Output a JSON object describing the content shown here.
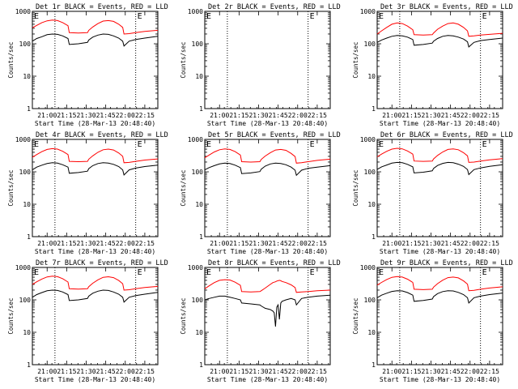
{
  "colors": {
    "events": "#000000",
    "lld": "#ff0000",
    "axis": "#000000",
    "background": "#ffffff"
  },
  "shared": {
    "xlabel": "Start Time (28-Mar-13 20:48:40)",
    "ylabel": "Counts/sec",
    "x_tick_labels": [
      "21:00",
      "21:15",
      "21:30",
      "21:45",
      "22:00",
      "22:15"
    ],
    "y_tick_labels": [
      "1",
      "10",
      "100",
      "1000"
    ],
    "corner_marker": "E",
    "yscale": "log",
    "ylim": [
      1,
      1000
    ],
    "xlim_time": [
      "20:48:40",
      "22:25:00"
    ],
    "dotted_lines_time": [
      "21:06",
      "22:08"
    ]
  },
  "chart_data": [
    {
      "type": "line",
      "title": "Det 1r BLACK = Events, RED = LLD",
      "x": [
        "20:48:40",
        "20:52",
        "20:56",
        "21:00",
        "21:04",
        "21:08",
        "21:12",
        "21:16",
        "21:17",
        "21:24",
        "21:31",
        "21:32",
        "21:35",
        "21:39",
        "21:43",
        "21:47",
        "21:51",
        "21:55",
        "21:58",
        "21:59",
        "22:03",
        "22:08",
        "22:15",
        "22:25"
      ],
      "series": [
        {
          "values": [
            310,
            370,
            450,
            510,
            540,
            520,
            450,
            360,
            220,
            215,
            220,
            260,
            330,
            420,
            500,
            520,
            490,
            400,
            320,
            200,
            205,
            220,
            240,
            260
          ]
        },
        {
          "values": [
            120,
            145,
            165,
            190,
            200,
            195,
            175,
            145,
            95,
            100,
            110,
            130,
            160,
            185,
            200,
            195,
            175,
            150,
            120,
            85,
            120,
            135,
            150,
            170
          ]
        }
      ]
    },
    {
      "type": "line",
      "title": "Det 2r BLACK = Events, RED = LLD",
      "x": [],
      "series": []
    },
    {
      "type": "line",
      "title": "Det 3r BLACK = Events, RED = LLD",
      "x": [
        "20:48:40",
        "20:52",
        "20:56",
        "21:00",
        "21:04",
        "21:08",
        "21:12",
        "21:16",
        "21:17",
        "21:24",
        "21:31",
        "21:32",
        "21:35",
        "21:39",
        "21:43",
        "21:47",
        "21:51",
        "21:55",
        "21:58",
        "21:59",
        "22:03",
        "22:08",
        "22:15",
        "22:25"
      ],
      "series": [
        {
          "values": [
            200,
            250,
            320,
            400,
            440,
            420,
            350,
            270,
            190,
            185,
            190,
            215,
            280,
            350,
            420,
            440,
            400,
            320,
            250,
            170,
            175,
            185,
            195,
            210
          ]
        },
        {
          "values": [
            110,
            130,
            150,
            170,
            180,
            175,
            160,
            135,
            90,
            95,
            105,
            120,
            145,
            170,
            180,
            175,
            160,
            140,
            115,
            80,
            110,
            125,
            135,
            150
          ]
        }
      ]
    },
    {
      "type": "line",
      "title": "Det 4r BLACK = Events, RED = LLD",
      "x": [
        "20:48:40",
        "20:52",
        "20:56",
        "21:00",
        "21:04",
        "21:08",
        "21:12",
        "21:16",
        "21:17",
        "21:24",
        "21:31",
        "21:32",
        "21:35",
        "21:39",
        "21:43",
        "21:47",
        "21:51",
        "21:55",
        "21:58",
        "21:59",
        "22:03",
        "22:08",
        "22:15",
        "22:25"
      ],
      "series": [
        {
          "values": [
            280,
            340,
            420,
            490,
            520,
            500,
            430,
            340,
            210,
            205,
            210,
            245,
            310,
            400,
            480,
            500,
            470,
            380,
            300,
            190,
            195,
            210,
            230,
            250
          ]
        },
        {
          "values": [
            115,
            140,
            160,
            180,
            190,
            185,
            165,
            140,
            90,
            95,
            105,
            125,
            155,
            180,
            190,
            185,
            170,
            145,
            115,
            80,
            115,
            130,
            145,
            160
          ]
        }
      ]
    },
    {
      "type": "line",
      "title": "Det 5r BLACK = Events, RED = LLD",
      "x": [
        "20:48:40",
        "20:52",
        "20:56",
        "21:00",
        "21:04",
        "21:08",
        "21:12",
        "21:16",
        "21:17",
        "21:24",
        "21:31",
        "21:32",
        "21:35",
        "21:39",
        "21:43",
        "21:47",
        "21:51",
        "21:55",
        "21:58",
        "21:59",
        "22:03",
        "22:08",
        "22:15",
        "22:25"
      ],
      "series": [
        {
          "values": [
            270,
            330,
            410,
            480,
            510,
            490,
            420,
            330,
            205,
            200,
            205,
            240,
            305,
            390,
            470,
            490,
            460,
            370,
            295,
            185,
            190,
            205,
            225,
            245
          ]
        },
        {
          "values": [
            115,
            135,
            155,
            175,
            185,
            180,
            160,
            135,
            88,
            92,
            102,
            120,
            150,
            175,
            185,
            180,
            165,
            140,
            112,
            78,
            112,
            128,
            140,
            155
          ]
        }
      ]
    },
    {
      "type": "line",
      "title": "Det 6r BLACK = Events, RED = LLD",
      "x": [
        "20:48:40",
        "20:52",
        "20:56",
        "21:00",
        "21:04",
        "21:08",
        "21:12",
        "21:16",
        "21:17",
        "21:24",
        "21:31",
        "21:32",
        "21:35",
        "21:39",
        "21:43",
        "21:47",
        "21:51",
        "21:55",
        "21:58",
        "21:59",
        "22:03",
        "22:08",
        "22:15",
        "22:25"
      ],
      "series": [
        {
          "values": [
            290,
            350,
            430,
            500,
            530,
            510,
            440,
            350,
            215,
            210,
            215,
            250,
            320,
            410,
            490,
            510,
            480,
            390,
            310,
            195,
            200,
            215,
            235,
            255
          ]
        },
        {
          "values": [
            118,
            142,
            162,
            185,
            195,
            190,
            170,
            142,
            92,
            97,
            107,
            127,
            157,
            182,
            195,
            190,
            172,
            147,
            117,
            82,
            117,
            132,
            147,
            165
          ]
        }
      ]
    },
    {
      "type": "line",
      "title": "Det 7r BLACK = Events, RED = LLD",
      "x": [
        "20:48:40",
        "20:52",
        "20:56",
        "21:00",
        "21:04",
        "21:08",
        "21:12",
        "21:16",
        "21:17",
        "21:24",
        "21:31",
        "21:32",
        "21:35",
        "21:39",
        "21:43",
        "21:47",
        "21:51",
        "21:55",
        "21:58",
        "21:59",
        "22:03",
        "22:08",
        "22:15",
        "22:25"
      ],
      "series": [
        {
          "values": [
            300,
            360,
            440,
            510,
            540,
            520,
            450,
            355,
            220,
            215,
            220,
            255,
            325,
            415,
            495,
            515,
            485,
            395,
            315,
            200,
            205,
            220,
            240,
            260
          ]
        },
        {
          "values": [
            120,
            145,
            168,
            190,
            200,
            195,
            175,
            145,
            95,
            100,
            110,
            130,
            160,
            185,
            200,
            195,
            175,
            150,
            120,
            85,
            120,
            135,
            150,
            170
          ]
        }
      ]
    },
    {
      "type": "line",
      "title": "Det 8r BLACK = Events, RED = LLD",
      "x": [
        "20:48:40",
        "20:52",
        "20:56",
        "21:00",
        "21:04",
        "21:08",
        "21:12",
        "21:16",
        "21:17",
        "21:24",
        "21:31",
        "21:32",
        "21:35",
        "21:39",
        "21:41",
        "21:42",
        "21:43",
        "21:44",
        "21:45",
        "21:46",
        "21:47",
        "21:48",
        "21:51",
        "21:55",
        "21:58",
        "21:59",
        "22:03",
        "22:08",
        "22:15",
        "22:25"
      ],
      "series": [
        {
          "values": [
            220,
            270,
            340,
            400,
            420,
            410,
            350,
            280,
            180,
            175,
            180,
            190,
            230,
            300,
            340,
            350,
            360,
            380,
            390,
            400,
            390,
            370,
            340,
            290,
            240,
            170,
            175,
            180,
            190,
            200
          ]
        },
        {
          "values": [
            100,
            110,
            120,
            130,
            130,
            120,
            110,
            100,
            80,
            75,
            70,
            65,
            55,
            50,
            45,
            40,
            15,
            60,
            70,
            25,
            80,
            90,
            100,
            110,
            100,
            70,
            110,
            120,
            130,
            140
          ]
        }
      ]
    },
    {
      "type": "line",
      "title": "Det 9r BLACK = Events, RED = LLD",
      "x": [
        "20:48:40",
        "20:52",
        "20:56",
        "21:00",
        "21:04",
        "21:08",
        "21:12",
        "21:16",
        "21:17",
        "21:24",
        "21:31",
        "21:32",
        "21:35",
        "21:39",
        "21:43",
        "21:47",
        "21:51",
        "21:55",
        "21:58",
        "21:59",
        "22:03",
        "22:08",
        "22:15",
        "22:25"
      ],
      "series": [
        {
          "values": [
            285,
            345,
            425,
            495,
            525,
            505,
            435,
            345,
            212,
            207,
            212,
            247,
            317,
            405,
            485,
            505,
            475,
            385,
            305,
            192,
            197,
            212,
            232,
            252
          ]
        },
        {
          "values": [
            116,
            140,
            160,
            182,
            192,
            188,
            168,
            140,
            90,
            96,
            106,
            126,
            156,
            180,
            192,
            188,
            170,
            145,
            116,
            80,
            116,
            130,
            145,
            162
          ]
        }
      ]
    }
  ]
}
